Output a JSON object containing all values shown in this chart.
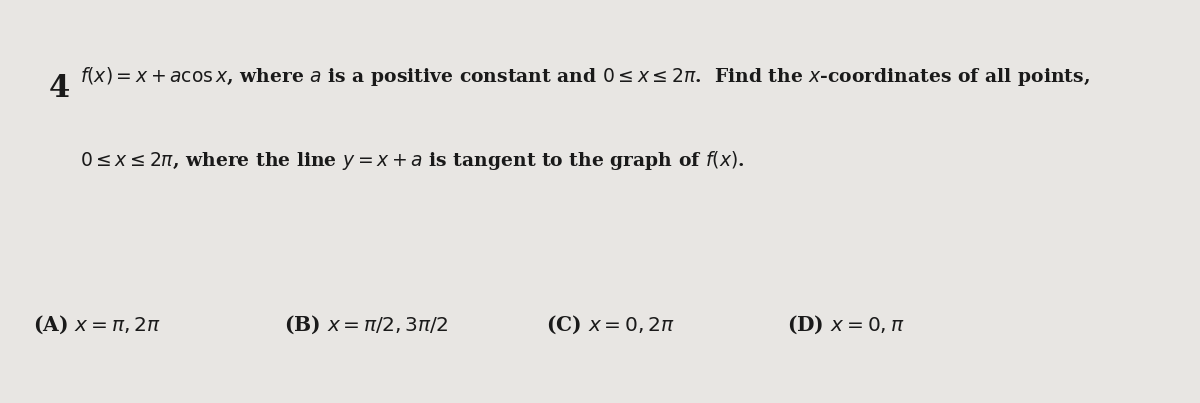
{
  "background_color": "#e8e6e3",
  "question_number": "4",
  "line1": "$f(x) = x + a\\cos x$, where $a$ is a positive constant and $0 \\leq x \\leq 2\\pi$.  Find the $x$-coordinates of all points,",
  "line2": "$0 \\leq x \\leq 2\\pi$, where the line $y = x + a$ is tangent to the graph of $f(x)$.",
  "options": [
    "(A) $x = \\pi, 2\\pi$",
    "(B) $x = \\pi/2, 3\\pi/2$",
    "(C) $x = 0, 2\\pi$",
    "(D) $x = 0, \\pi$"
  ],
  "text_color": "#1a1a1a",
  "font_size_main": 13.5,
  "font_size_options": 14.5,
  "font_size_number": 22
}
